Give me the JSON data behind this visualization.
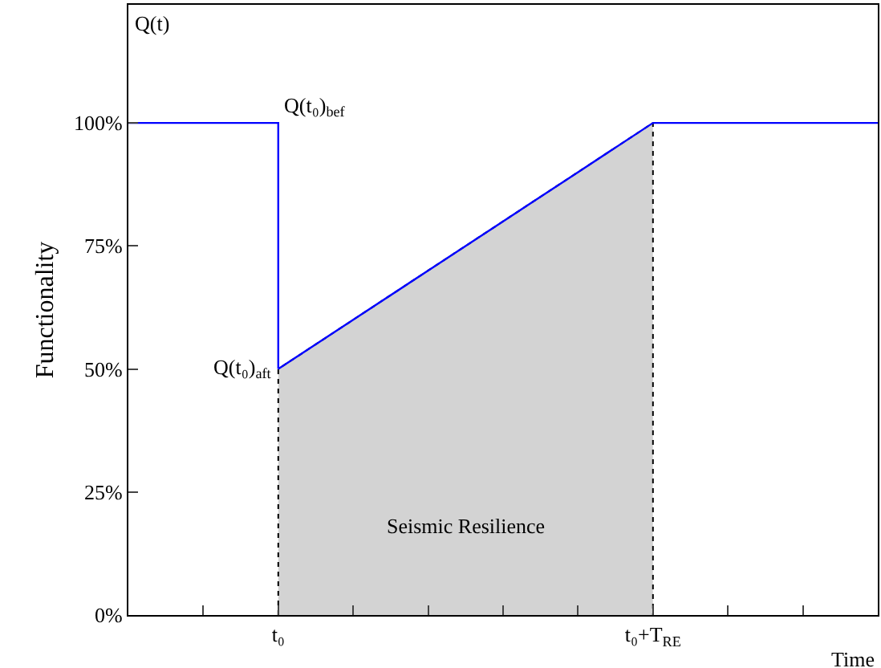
{
  "chart_data": {
    "type": "line",
    "xlabel": "Time",
    "ylabel": "Functionality",
    "categories": [
      null,
      null,
      "t₀",
      null,
      null,
      null,
      null,
      "t₀+T$_{RE}$",
      null,
      null,
      null
    ],
    "ylim": [
      0,
      124
    ],
    "yticks": [
      {
        "value": 0,
        "label": "0%"
      },
      {
        "value": 25,
        "label": "25%"
      },
      {
        "value": 50,
        "label": "50%"
      },
      {
        "value": 75,
        "label": "75%"
      },
      {
        "value": 100,
        "label": "100%"
      }
    ],
    "series": [
      {
        "type": "area",
        "color": "#d3d3d3",
        "values": [
          null,
          null,
          50,
          60,
          70,
          80,
          90,
          100,
          null,
          null,
          null
        ],
        "line_style": "dotted"
      },
      {
        "type": "step",
        "color": "#0000ff",
        "values": [
          100,
          100,
          50,
          null,
          null,
          null,
          null,
          null,
          null,
          null,
          null
        ]
      },
      {
        "color": "#0000ff",
        "values": [
          null,
          null,
          50,
          60,
          70,
          80,
          90,
          100,
          100,
          100,
          100
        ]
      }
    ],
    "annotations": [
      "Q(t)",
      {
        "text": "Q(t₀)$_{bef}$",
        "x": "t₀",
        "y": 100
      },
      {
        "text": "Q(t₀)$_{aft}$",
        "x": "t₀",
        "y": 50
      },
      "Seismic Resilience"
    ],
    "grid": false,
    "marker": "none",
    "line_style": "solid"
  }
}
